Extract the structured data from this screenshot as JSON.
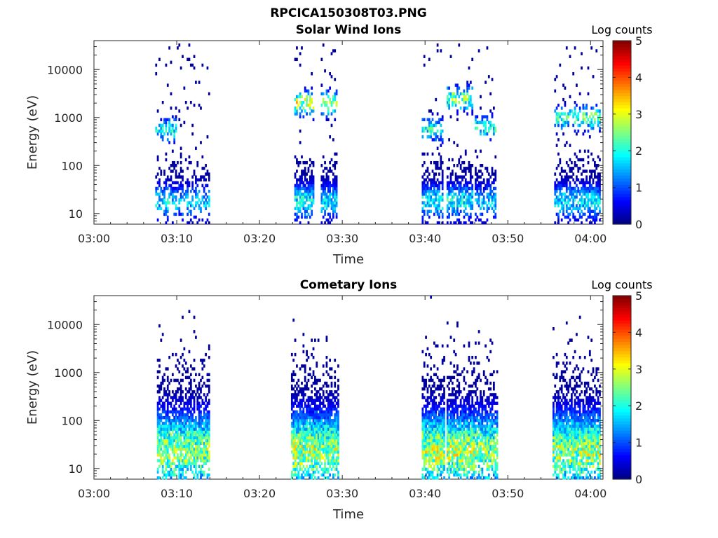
{
  "figure": {
    "title": "RPCICA150308T03.PNG"
  },
  "chart_data": [
    {
      "type": "heatmap",
      "title": "Solar Wind Ions",
      "xlabel": "Time",
      "ylabel": "Energy (eV)",
      "x_ticks": [
        "03:00",
        "03:10",
        "03:20",
        "03:30",
        "03:40",
        "03:50",
        "04:00"
      ],
      "y_ticks": [
        "10",
        "100",
        "1000",
        "10000"
      ],
      "y_scale": "log",
      "ylim": [
        6,
        40000
      ],
      "xlim": [
        "03:00",
        "04:01.5"
      ],
      "colorbar": {
        "label": "Log counts",
        "ticks": [
          "0",
          "1",
          "2",
          "3",
          "4",
          "5"
        ],
        "range": [
          0,
          5
        ],
        "colormap": "jet"
      },
      "bursts": [
        {
          "t0": 7.4,
          "t1": 9.8,
          "low_max": 2.0,
          "high_e": 550,
          "high_max": 2.2,
          "sparse": 0.6
        },
        {
          "t0": 9.8,
          "t1": 13.8,
          "low_max": 1.8,
          "high_e": 0,
          "high_max": 0,
          "sparse": 0.5
        },
        {
          "t0": 24.2,
          "t1": 26.4,
          "low_max": 2.2,
          "high_e": 2000,
          "high_max": 3.2,
          "sparse": 0.9
        },
        {
          "t0": 27.4,
          "t1": 29.2,
          "low_max": 2.0,
          "high_e": 2000,
          "high_max": 3.0,
          "sparse": 0.8
        },
        {
          "t0": 39.6,
          "t1": 42.2,
          "low_max": 2.1,
          "high_e": 550,
          "high_max": 2.2,
          "sparse": 0.8
        },
        {
          "t0": 42.6,
          "t1": 45.8,
          "low_max": 2.2,
          "high_e": 2500,
          "high_max": 2.8,
          "sparse": 0.8
        },
        {
          "t0": 46.0,
          "t1": 48.6,
          "low_max": 1.8,
          "high_e": 600,
          "high_max": 2.3,
          "sparse": 0.6
        },
        {
          "t0": 55.6,
          "t1": 58.8,
          "low_max": 2.0,
          "high_e": 1000,
          "high_max": 2.4,
          "sparse": 0.7
        },
        {
          "t0": 58.8,
          "t1": 61.2,
          "low_max": 2.0,
          "high_e": 1000,
          "high_max": 2.6,
          "sparse": 0.8
        }
      ]
    },
    {
      "type": "heatmap",
      "title": "Cometary Ions",
      "xlabel": "Time",
      "ylabel": "Energy (eV)",
      "x_ticks": [
        "03:00",
        "03:10",
        "03:20",
        "03:30",
        "03:40",
        "03:50",
        "04:00"
      ],
      "y_ticks": [
        "10",
        "100",
        "1000",
        "10000"
      ],
      "y_scale": "log",
      "ylim": [
        6,
        40000
      ],
      "xlim": [
        "03:00",
        "04:01.5"
      ],
      "colorbar": {
        "label": "Log counts",
        "ticks": [
          "0",
          "1",
          "2",
          "3",
          "4",
          "5"
        ],
        "range": [
          0,
          5
        ],
        "colormap": "jet"
      },
      "bursts": [
        {
          "t0": 7.6,
          "t1": 10.4,
          "low_max": 3.0,
          "high_e": 0,
          "high_max": 0,
          "sparse": 0.9
        },
        {
          "t0": 10.4,
          "t1": 13.8,
          "low_max": 2.9,
          "high_e": 0,
          "high_max": 0,
          "sparse": 0.9
        },
        {
          "t0": 23.8,
          "t1": 26.8,
          "low_max": 3.1,
          "high_e": 0,
          "high_max": 0,
          "sparse": 1.0
        },
        {
          "t0": 26.8,
          "t1": 29.4,
          "low_max": 3.0,
          "high_e": 0,
          "high_max": 0,
          "sparse": 1.0
        },
        {
          "t0": 39.6,
          "t1": 42.4,
          "low_max": 3.1,
          "high_e": 0,
          "high_max": 0,
          "sparse": 1.0
        },
        {
          "t0": 42.6,
          "t1": 46.0,
          "low_max": 3.1,
          "high_e": 0,
          "high_max": 0,
          "sparse": 1.0
        },
        {
          "t0": 46.0,
          "t1": 48.8,
          "low_max": 2.9,
          "high_e": 0,
          "high_max": 0,
          "sparse": 0.9
        },
        {
          "t0": 55.4,
          "t1": 58.6,
          "low_max": 3.0,
          "high_e": 0,
          "high_max": 0,
          "sparse": 1.0
        },
        {
          "t0": 58.6,
          "t1": 61.2,
          "low_max": 3.1,
          "high_e": 0,
          "high_max": 0,
          "sparse": 1.0
        }
      ]
    }
  ]
}
